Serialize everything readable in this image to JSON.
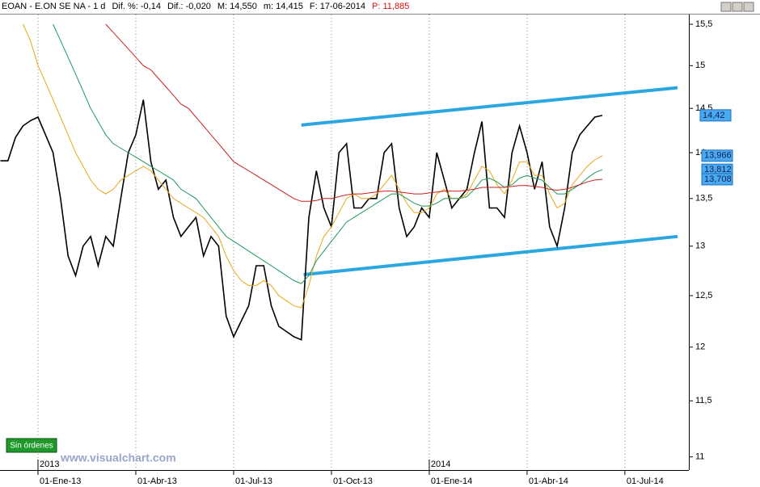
{
  "header": {
    "symbol": "EOAN - E.ON SE NA - 1 d",
    "stats": [
      "Dif. %: -0,14",
      "Dif.: -0,020",
      "M: 14,550",
      "m: 14,415",
      "F: 17-06-2014"
    ],
    "last": "P: 11,885"
  },
  "button": "Sin órdenes",
  "watermark": "www.visualchart.com",
  "chart_data": {
    "type": "line",
    "yscale": "log",
    "grid": "x",
    "categories": [
      null,
      null,
      null,
      null,
      null,
      "01-Ene-13",
      null,
      null,
      null,
      null,
      null,
      null,
      null,
      null,
      null,
      null,
      null,
      null,
      "01-Abr-13",
      null,
      null,
      null,
      null,
      null,
      null,
      null,
      null,
      null,
      null,
      null,
      null,
      "01-Jul-13",
      null,
      null,
      null,
      null,
      null,
      null,
      null,
      null,
      null,
      null,
      null,
      null,
      "01-Oct-13",
      null,
      null,
      null,
      null,
      null,
      null,
      null,
      null,
      null,
      null,
      null,
      null,
      "01-Ene-14",
      null,
      null,
      null,
      null,
      null,
      null,
      null,
      null,
      null,
      null,
      null,
      null,
      "01-Abr-14",
      null,
      null,
      null,
      null,
      null,
      null,
      null,
      null,
      null,
      null,
      null,
      null,
      "01-Jul-14",
      null,
      null
    ],
    "year_ticks": [
      {
        "value": 5,
        "label": "2013"
      },
      {
        "value": 57,
        "label": "2014"
      }
    ],
    "xlim": [
      -0.05,
      91.5
    ],
    "ylim": [
      10.9,
      15.62
    ],
    "yticks": [
      11,
      {
        "value": 11.5,
        "label": "11,5"
      },
      12,
      {
        "value": 12.5,
        "label": "12,5"
      },
      13,
      {
        "value": 13.5,
        "label": "13,5"
      },
      14,
      {
        "value": 14.5,
        "label": "14,5"
      },
      15,
      {
        "value": 15.5,
        "label": "15,5"
      }
    ],
    "series": [
      {
        "color": "#000000",
        "last_label": "14,42",
        "values": [
          13.91,
          13.91,
          14.17,
          14.3,
          14.36,
          14.4,
          14.2,
          14.0,
          13.5,
          12.9,
          12.7,
          13.0,
          13.1,
          12.8,
          13.1,
          13.0,
          13.5,
          14.0,
          14.2,
          14.6,
          13.9,
          13.6,
          13.7,
          13.3,
          13.1,
          13.2,
          13.3,
          12.9,
          13.1,
          13.0,
          12.3,
          12.1,
          12.25,
          12.4,
          12.8,
          12.8,
          12.4,
          12.2,
          12.15,
          12.1,
          12.07,
          13.3,
          13.8,
          13.4,
          13.2,
          14.0,
          14.1,
          13.4,
          13.4,
          13.5,
          13.5,
          14.0,
          14.1,
          13.4,
          13.1,
          13.2,
          13.4,
          13.3,
          14.0,
          13.7,
          13.4,
          13.5,
          13.6,
          14.0,
          14.35,
          13.4,
          13.4,
          13.3,
          14.0,
          14.3,
          14.0,
          13.6,
          13.9,
          13.2,
          13.0,
          13.4,
          14.0,
          14.2,
          14.3,
          14.4,
          14.42,
          null,
          null,
          null,
          null,
          null
        ]
      },
      {
        "color": "#e8a818",
        "last_label": "13,966",
        "values": [
          null,
          null,
          null,
          15.5,
          15.3,
          15.0,
          14.8,
          14.6,
          14.4,
          14.2,
          14.0,
          13.85,
          13.7,
          13.6,
          13.55,
          13.6,
          13.7,
          13.75,
          13.8,
          13.85,
          13.8,
          13.7,
          13.6,
          13.5,
          13.45,
          13.4,
          13.35,
          13.3,
          13.2,
          13.1,
          12.9,
          12.75,
          12.65,
          12.6,
          12.6,
          12.65,
          12.6,
          12.5,
          12.45,
          12.4,
          12.38,
          12.6,
          12.9,
          13.1,
          13.2,
          13.35,
          13.5,
          13.55,
          13.5,
          13.5,
          13.55,
          13.65,
          13.75,
          13.6,
          13.45,
          13.35,
          13.35,
          13.4,
          13.55,
          13.6,
          13.5,
          13.5,
          13.55,
          13.7,
          13.85,
          13.8,
          13.65,
          13.55,
          13.7,
          13.9,
          13.9,
          13.75,
          13.75,
          13.55,
          13.4,
          13.45,
          13.65,
          13.75,
          13.85,
          13.92,
          13.966,
          null,
          null,
          null,
          null,
          null
        ]
      },
      {
        "color": "#1f9a5a",
        "last_label": "13,812",
        "values": [
          null,
          null,
          null,
          null,
          null,
          null,
          null,
          15.5,
          15.3,
          15.1,
          14.9,
          14.7,
          14.5,
          14.35,
          14.2,
          14.1,
          14.05,
          14.0,
          13.95,
          13.9,
          13.85,
          13.8,
          13.75,
          13.7,
          13.6,
          13.55,
          13.5,
          13.4,
          13.3,
          13.2,
          13.1,
          13.05,
          13.0,
          12.95,
          12.9,
          12.85,
          12.8,
          12.75,
          12.7,
          12.65,
          12.62,
          12.7,
          12.85,
          12.95,
          13.05,
          13.15,
          13.25,
          13.3,
          13.35,
          13.4,
          13.45,
          13.5,
          13.55,
          13.55,
          13.5,
          13.45,
          13.42,
          13.42,
          13.45,
          13.5,
          13.5,
          13.5,
          13.52,
          13.6,
          13.7,
          13.72,
          13.68,
          13.62,
          13.65,
          13.72,
          13.75,
          13.72,
          13.7,
          13.62,
          13.55,
          13.55,
          13.6,
          13.65,
          13.72,
          13.78,
          13.812,
          null,
          null,
          null,
          null,
          null
        ]
      },
      {
        "color": "#cc2020",
        "last_label": "13,708",
        "values": [
          null,
          null,
          null,
          null,
          null,
          null,
          null,
          null,
          null,
          null,
          null,
          null,
          null,
          null,
          15.5,
          15.4,
          15.3,
          15.2,
          15.1,
          15.0,
          14.95,
          14.85,
          14.75,
          14.65,
          14.55,
          14.5,
          14.4,
          14.3,
          14.2,
          14.1,
          14.0,
          13.9,
          13.85,
          13.8,
          13.75,
          13.7,
          13.65,
          13.6,
          13.55,
          13.5,
          13.47,
          13.47,
          13.48,
          13.5,
          13.5,
          13.52,
          13.54,
          13.55,
          13.55,
          13.56,
          13.57,
          13.58,
          13.58,
          13.57,
          13.56,
          13.55,
          13.55,
          13.56,
          13.57,
          13.58,
          13.58,
          13.58,
          13.59,
          13.6,
          13.62,
          13.62,
          13.62,
          13.62,
          13.63,
          13.64,
          13.64,
          13.63,
          13.62,
          13.6,
          13.59,
          13.6,
          13.62,
          13.65,
          13.68,
          13.7,
          13.708,
          null,
          null,
          null,
          null,
          null
        ]
      }
    ],
    "trend_lines": {
      "color": "#2aa6e0",
      "lines": [
        {
          "from": [
            40,
            14.31
          ],
          "to": [
            90,
            14.74
          ]
        },
        {
          "from": [
            40.3,
            12.71
          ],
          "to": [
            90,
            13.1
          ]
        }
      ]
    }
  }
}
